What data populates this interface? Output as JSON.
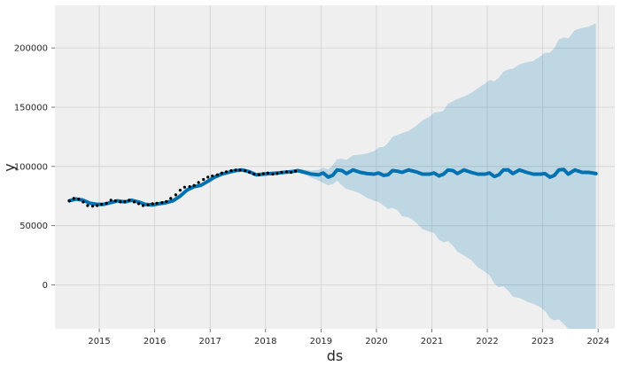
{
  "chart_data": {
    "type": "line",
    "xlabel": "ds",
    "ylabel": "y",
    "xlim": [
      2014.2,
      2024.3
    ],
    "ylim": [
      -37000,
      236000
    ],
    "x_ticks": [
      2015,
      2016,
      2017,
      2018,
      2019,
      2020,
      2021,
      2022,
      2023,
      2024
    ],
    "x_tick_labels": [
      "2015",
      "2016",
      "2017",
      "2018",
      "2019",
      "2020",
      "2021",
      "2022",
      "2023",
      "2024"
    ],
    "y_ticks": [
      0,
      50000,
      100000,
      150000,
      200000
    ],
    "y_tick_labels": [
      "0",
      "50000",
      "100000",
      "150000",
      "200000"
    ],
    "grid": true,
    "colors": {
      "plot_background": "#efefef",
      "grid": "#d0d0d0",
      "forecast_line": "#0072b2",
      "uncertainty_band": "#0072b2",
      "observed_points": "#000000"
    },
    "observed": {
      "x": [
        2014.46,
        2014.54,
        2014.63,
        2014.71,
        2014.79,
        2014.88,
        2014.96,
        2015.04,
        2015.13,
        2015.21,
        2015.29,
        2015.38,
        2015.46,
        2015.54,
        2015.63,
        2015.71,
        2015.79,
        2015.88,
        2015.96,
        2016.04,
        2016.13,
        2016.21,
        2016.29,
        2016.38,
        2016.46,
        2016.54,
        2016.63,
        2016.71,
        2016.79,
        2016.88,
        2016.96,
        2017.04,
        2017.13,
        2017.21,
        2017.29,
        2017.38,
        2017.46,
        2017.54,
        2017.63,
        2017.71,
        2017.79,
        2017.88,
        2017.96,
        2018.04,
        2018.13,
        2018.21,
        2018.29,
        2018.38,
        2018.46,
        2018.54
      ],
      "y": [
        71000,
        73000,
        72500,
        70000,
        67000,
        66500,
        67000,
        68000,
        69000,
        71500,
        71000,
        70000,
        70500,
        71500,
        70000,
        68500,
        67000,
        67500,
        68500,
        69000,
        69500,
        70500,
        73000,
        76000,
        80000,
        82500,
        83000,
        84000,
        86500,
        89000,
        91000,
        92000,
        93000,
        94500,
        95500,
        96500,
        97000,
        97000,
        96500,
        95000,
        93500,
        93000,
        94000,
        94500,
        93500,
        94000,
        95000,
        95500,
        95000,
        96000
      ]
    },
    "forecast": {
      "x": [
        2014.46,
        2014.58,
        2014.71,
        2014.83,
        2014.96,
        2015.08,
        2015.21,
        2015.33,
        2015.46,
        2015.58,
        2015.71,
        2015.83,
        2015.96,
        2016.08,
        2016.21,
        2016.33,
        2016.46,
        2016.58,
        2016.71,
        2016.83,
        2016.96,
        2017.08,
        2017.21,
        2017.33,
        2017.46,
        2017.58,
        2017.71,
        2017.83,
        2017.96,
        2018.08,
        2018.21,
        2018.33,
        2018.46,
        2018.58,
        2018.71,
        2018.83,
        2018.96,
        2019.04,
        2019.13,
        2019.21,
        2019.29,
        2019.38,
        2019.46,
        2019.58,
        2019.71,
        2019.83,
        2019.96,
        2020.04,
        2020.13,
        2020.21,
        2020.29,
        2020.38,
        2020.46,
        2020.58,
        2020.71,
        2020.83,
        2020.96,
        2021.04,
        2021.13,
        2021.21,
        2021.29,
        2021.38,
        2021.46,
        2021.58,
        2021.71,
        2021.83,
        2021.96,
        2022.04,
        2022.13,
        2022.21,
        2022.29,
        2022.38,
        2022.46,
        2022.58,
        2022.71,
        2022.83,
        2022.96,
        2023.04,
        2023.13,
        2023.21,
        2023.29,
        2023.38,
        2023.46,
        2023.58,
        2023.71,
        2023.83,
        2023.96
      ],
      "yhat": [
        71000,
        72500,
        71500,
        69000,
        68000,
        68000,
        69500,
        71000,
        70000,
        71500,
        70000,
        68000,
        67500,
        68500,
        69500,
        71000,
        75000,
        80000,
        83000,
        84000,
        87500,
        91000,
        93500,
        95000,
        96500,
        97000,
        95500,
        93000,
        93500,
        94000,
        94500,
        95000,
        95500,
        96500,
        95000,
        93500,
        93000,
        94500,
        91000,
        92500,
        97000,
        96500,
        94000,
        97000,
        95000,
        94000,
        93500,
        94500,
        92500,
        93000,
        96500,
        96000,
        95000,
        97000,
        95500,
        93500,
        93500,
        94500,
        92000,
        93500,
        97000,
        96500,
        94000,
        97000,
        95000,
        93500,
        93500,
        94500,
        91500,
        93000,
        97000,
        97000,
        94000,
        97000,
        95000,
        93500,
        93500,
        94000,
        91000,
        92500,
        97000,
        97500,
        93500,
        97000,
        95000,
        95000,
        94000
      ],
      "upper": [
        72500,
        74000,
        73000,
        70500,
        69500,
        69500,
        71000,
        72500,
        71500,
        73000,
        71500,
        69500,
        69000,
        70000,
        71000,
        72500,
        76500,
        81500,
        84500,
        85500,
        89000,
        92500,
        95000,
        96500,
        98000,
        98500,
        97000,
        94500,
        95000,
        95500,
        96000,
        96500,
        97000,
        98000,
        97000,
        96500,
        97000,
        99000,
        97500,
        101000,
        106000,
        106500,
        105500,
        109500,
        110000,
        111000,
        113000,
        116000,
        116500,
        120000,
        125000,
        126500,
        128000,
        130000,
        134000,
        139000,
        142000,
        145500,
        146000,
        147000,
        153000,
        155000,
        157000,
        159000,
        162000,
        166000,
        170000,
        173000,
        172000,
        175000,
        180000,
        182000,
        182500,
        186000,
        188000,
        189000,
        193000,
        196000,
        196000,
        200000,
        207000,
        209000,
        208000,
        215000,
        217000,
        218000,
        221000
      ],
      "lower": [
        69500,
        71000,
        70000,
        67500,
        66500,
        66500,
        68000,
        69500,
        68500,
        70000,
        68500,
        66500,
        66000,
        67000,
        68000,
        69500,
        73500,
        78500,
        81500,
        82500,
        86000,
        89500,
        92000,
        93500,
        95000,
        95500,
        94000,
        91500,
        92000,
        92500,
        93000,
        93500,
        94000,
        95000,
        93000,
        90500,
        88000,
        86000,
        84000,
        85000,
        88000,
        84000,
        81000,
        79500,
        77000,
        73500,
        71000,
        70000,
        67000,
        64000,
        65000,
        63000,
        58000,
        57000,
        53000,
        47000,
        45000,
        44000,
        38000,
        36000,
        37000,
        33000,
        28000,
        25000,
        21000,
        15000,
        11000,
        8000,
        1000,
        -2000,
        -1000,
        -5000,
        -10000,
        -11000,
        -14000,
        -16000,
        -19000,
        -22000,
        -28000,
        -30000,
        -29000,
        -33000,
        -40000,
        -38000,
        -43000,
        -47000,
        -52000
      ]
    }
  }
}
